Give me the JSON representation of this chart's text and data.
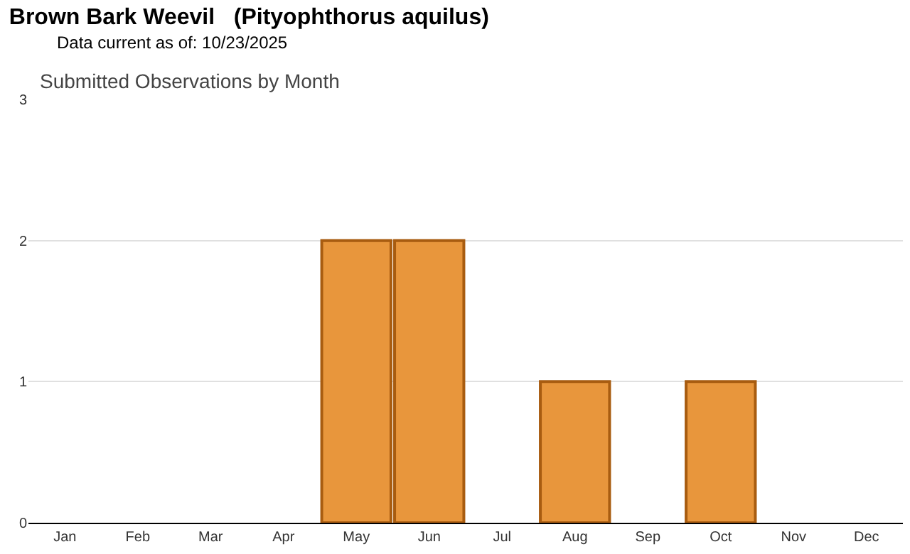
{
  "chart_data": {
    "type": "bar",
    "title": "Brown Bark Weevil   (Pityophthorus aquilus)",
    "subtitle": "Data current as of: 10/23/2025",
    "annotations": [
      "Submitted Observations by Month"
    ],
    "categories": [
      "Jan",
      "Feb",
      "Mar",
      "Apr",
      "May",
      "Jun",
      "Jul",
      "Aug",
      "Sep",
      "Oct",
      "Nov",
      "Dec"
    ],
    "values": [
      0,
      0,
      0,
      0,
      2,
      2,
      0,
      1,
      0,
      1,
      0,
      0
    ],
    "color": "#e8963c",
    "ylim": [
      0,
      3
    ],
    "yticks": [
      0,
      1,
      2,
      3
    ],
    "grid": "y"
  }
}
